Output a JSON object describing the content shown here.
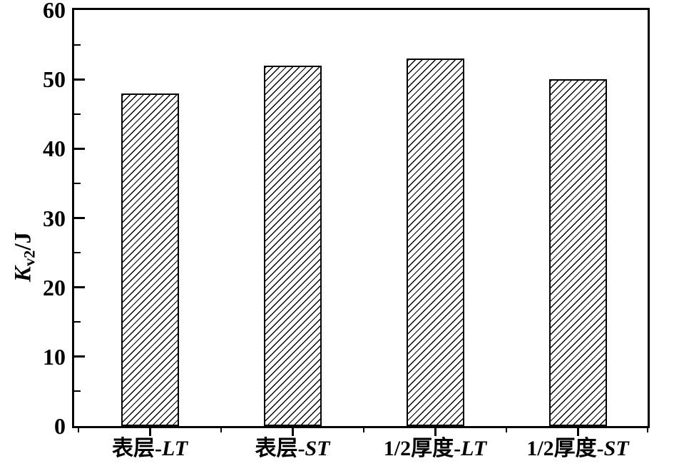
{
  "chart_data": {
    "type": "bar",
    "title": "",
    "ylabel": {
      "main": "K",
      "subscript": "v2",
      "unit": "/J"
    },
    "xlabel": "",
    "categories": [
      {
        "prefix": "表层-",
        "suffix": "LT"
      },
      {
        "prefix": "表层-",
        "suffix": "ST"
      },
      {
        "prefix": "1/2厚度-",
        "suffix": "LT"
      },
      {
        "prefix": "1/2厚度-",
        "suffix": "ST"
      }
    ],
    "values": [
      48,
      52,
      53,
      50
    ],
    "ylim": [
      0,
      60
    ],
    "ytick_major": [
      0,
      10,
      20,
      30,
      40,
      50,
      60
    ],
    "ytick_minor_step": 5,
    "grid": false,
    "legend": null,
    "bar_fill": "diagonal-hatch",
    "colors": {
      "line": "#000000",
      "background": "#ffffff"
    }
  }
}
